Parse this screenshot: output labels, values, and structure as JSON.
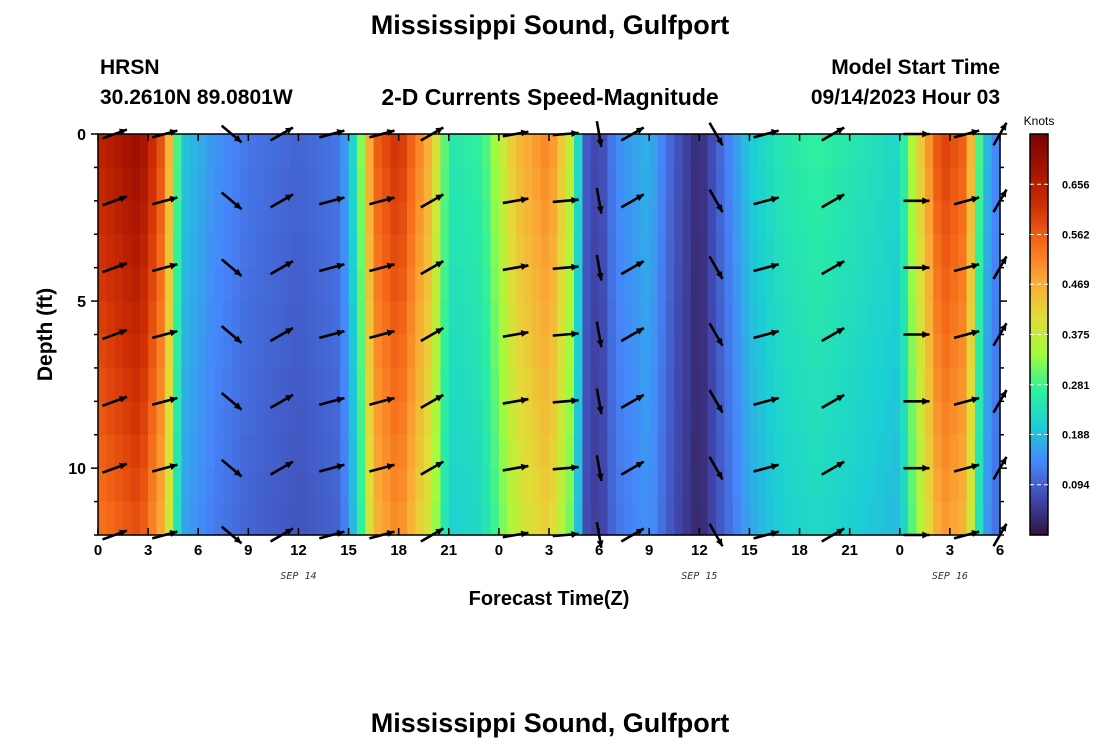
{
  "header": {
    "title": "Mississippi Sound, Gulfport",
    "station_code": "HRSN",
    "coords": "30.2610N  89.0801W",
    "subtitle": "2-D Currents Speed-Magnitude",
    "model_start_label": "Model Start Time",
    "model_start_value": "09/14/2023 Hour 03",
    "footer_title": "Mississippi Sound, Gulfport"
  },
  "colors": {
    "scale": [
      "#30123b",
      "#4146ac",
      "#4686fb",
      "#1bcfd4",
      "#2ef19d",
      "#a2fc3c",
      "#e1dd37",
      "#fba936",
      "#f66b19",
      "#d23105",
      "#a51301",
      "#7a0403"
    ]
  },
  "chart_data": {
    "type": "heatmap",
    "xlabel": "Forecast Time(Z)",
    "ylabel": "Depth (ft)",
    "colorbar_label": "Knots",
    "x_tick_labels": [
      "0",
      "3",
      "6",
      "9",
      "12",
      "15",
      "18",
      "21",
      "0",
      "3",
      "6",
      "9",
      "12",
      "15",
      "18",
      "21",
      "0",
      "3",
      "6"
    ],
    "date_labels": [
      {
        "text": "SEP 14",
        "hour": 12
      },
      {
        "text": "SEP 15",
        "hour": 36
      },
      {
        "text": "SEP 16",
        "hour": 51
      }
    ],
    "x_range_hours": [
      0,
      54
    ],
    "y_range_ft": [
      0,
      12
    ],
    "y_tick_labels": [
      {
        "value": 0,
        "text": "0"
      },
      {
        "value": 5,
        "text": "5"
      },
      {
        "value": 10,
        "text": "10"
      }
    ],
    "colorbar_range": [
      0.0,
      0.75
    ],
    "colorbar_ticks": [
      0.094,
      0.188,
      0.281,
      0.375,
      0.469,
      0.562,
      0.656
    ],
    "speed_by_hour": [
      {
        "h": 0,
        "v": 0.64
      },
      {
        "h": 2.5,
        "v": 0.7
      },
      {
        "h": 4,
        "v": 0.55
      },
      {
        "h": 5,
        "v": 0.2
      },
      {
        "h": 7,
        "v": 0.15
      },
      {
        "h": 9,
        "v": 0.12
      },
      {
        "h": 12,
        "v": 0.1
      },
      {
        "h": 14.5,
        "v": 0.12
      },
      {
        "h": 15.5,
        "v": 0.25
      },
      {
        "h": 16.5,
        "v": 0.55
      },
      {
        "h": 18,
        "v": 0.62
      },
      {
        "h": 20,
        "v": 0.45
      },
      {
        "h": 21,
        "v": 0.25
      },
      {
        "h": 23,
        "v": 0.27
      },
      {
        "h": 25,
        "v": 0.45
      },
      {
        "h": 27,
        "v": 0.52
      },
      {
        "h": 28.5,
        "v": 0.35
      },
      {
        "h": 29,
        "v": 0.1
      },
      {
        "h": 30,
        "v": 0.06
      },
      {
        "h": 31,
        "v": 0.14
      },
      {
        "h": 33,
        "v": 0.18
      },
      {
        "h": 34.5,
        "v": 0.09
      },
      {
        "h": 36,
        "v": 0.03
      },
      {
        "h": 37.5,
        "v": 0.12
      },
      {
        "h": 39,
        "v": 0.2
      },
      {
        "h": 41,
        "v": 0.25
      },
      {
        "h": 43,
        "v": 0.27
      },
      {
        "h": 46,
        "v": 0.24
      },
      {
        "h": 48,
        "v": 0.22
      },
      {
        "h": 49,
        "v": 0.4
      },
      {
        "h": 50.5,
        "v": 0.6
      },
      {
        "h": 52,
        "v": 0.55
      },
      {
        "h": 53,
        "v": 0.2
      },
      {
        "h": 54,
        "v": 0.12
      }
    ],
    "vector_hours": [
      1,
      4,
      8,
      11,
      14,
      17,
      20,
      25,
      28,
      30,
      32,
      37,
      40,
      44,
      49,
      52,
      54
    ],
    "vector_depths_ft": [
      0,
      2,
      4,
      6,
      8,
      10,
      12
    ],
    "vector_dirs_deg": [
      20,
      15,
      -40,
      30,
      15,
      15,
      30,
      10,
      5,
      -80,
      30,
      -60,
      15,
      30,
      0,
      15,
      60
    ]
  }
}
